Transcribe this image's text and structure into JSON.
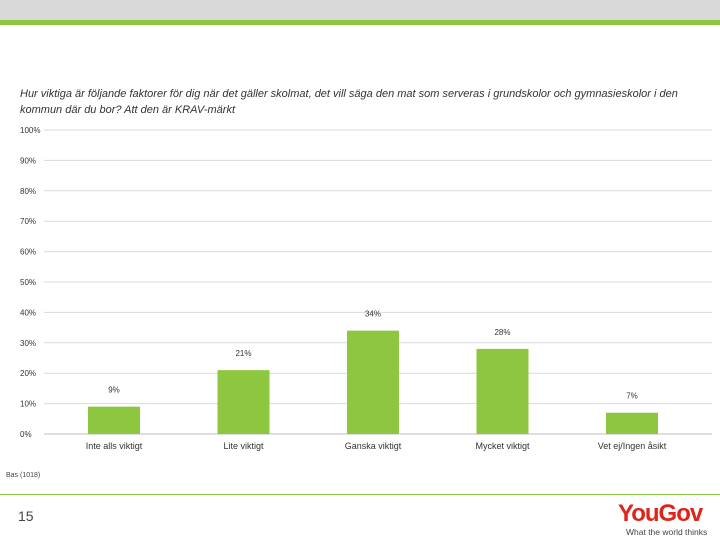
{
  "slide": {
    "question": "Hur viktiga är följande faktorer för dig när det gäller skolmat, det vill säga den mat som serveras i grundskolor och gymnasieskolor i den kommun där du bor? Att den är KRAV-märkt",
    "base_note": "Bas (1018)",
    "page_number": "15"
  },
  "logo": {
    "brand": "YouGov",
    "tagline": "What the world thinks",
    "brand_color": "#e2231a"
  },
  "colors": {
    "accent": "#8dc63f",
    "bar": "#8dc63f",
    "header_gray": "#d9d9d9",
    "gridline": "#d9d9d9"
  },
  "chart_data": {
    "type": "bar",
    "categories": [
      "Inte alls viktigt",
      "Lite viktigt",
      "Ganska viktigt",
      "Mycket viktigt",
      "Vet ej/Ingen åsikt"
    ],
    "values": [
      9,
      21,
      34,
      28,
      7
    ],
    "data_labels": [
      "9%",
      "21%",
      "34%",
      "28%",
      "7%"
    ],
    "yticks": [
      "0%",
      "10%",
      "20%",
      "30%",
      "40%",
      "50%",
      "60%",
      "70%",
      "80%",
      "90%",
      "100%"
    ],
    "ylim": [
      0,
      100
    ],
    "grid": true,
    "legend": "none"
  }
}
